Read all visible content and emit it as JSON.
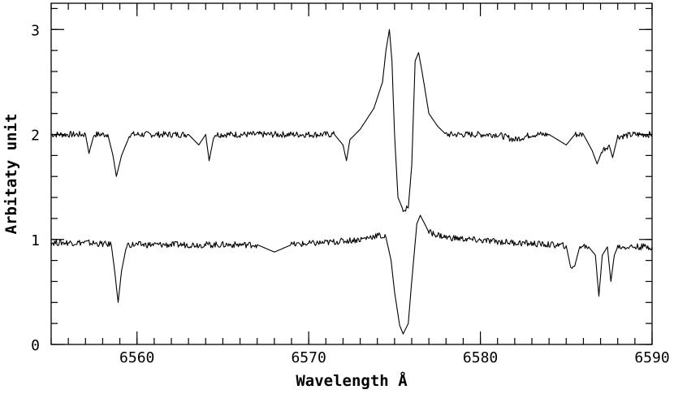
{
  "chart_data": {
    "type": "line",
    "title": "",
    "xlabel": "Wavelength Å",
    "ylabel": "Arbitaty unit",
    "xlim": [
      6555,
      6590
    ],
    "ylim": [
      0,
      3.25
    ],
    "x_ticks": [
      6560,
      6570,
      6580,
      6590
    ],
    "y_ticks": [
      0,
      1,
      2,
      3
    ],
    "x_minor_step": 1,
    "y_minor_step": 0.2,
    "grid": false,
    "legend": "none",
    "line_color": "#000000",
    "series": [
      {
        "x": [
          6555.0,
          6557.0,
          6557.2,
          6557.5,
          6558.3,
          6558.6,
          6558.8,
          6559.1,
          6559.6,
          6561.0,
          6562.0,
          6563.0,
          6563.6,
          6564.0,
          6564.2,
          6564.5,
          6566.0,
          6568.0,
          6570.0,
          6571.5,
          6572.0,
          6572.2,
          6572.4,
          6573.0,
          6573.8,
          6574.3,
          6574.5,
          6574.7,
          6574.85,
          6575.0,
          6575.2,
          6575.5,
          6575.8,
          6576.0,
          6576.2,
          6576.4,
          6576.6,
          6577.0,
          6577.5,
          6578.0,
          6579.0,
          6580.0,
          6581.0,
          6582.0,
          6583.0,
          6584.0,
          6585.0,
          6585.5,
          6586.0,
          6586.5,
          6586.8,
          6587.1,
          6587.5,
          6587.7,
          6588.0,
          6589.0,
          6590.0
        ],
        "y": [
          2.0,
          2.0,
          1.82,
          2.0,
          2.0,
          1.8,
          1.6,
          1.8,
          2.0,
          2.0,
          2.0,
          2.0,
          1.9,
          2.0,
          1.75,
          2.0,
          2.0,
          2.0,
          2.0,
          2.0,
          1.9,
          1.75,
          1.95,
          2.05,
          2.25,
          2.5,
          2.8,
          3.0,
          2.7,
          2.0,
          1.4,
          1.28,
          1.3,
          1.7,
          2.7,
          2.78,
          2.6,
          2.2,
          2.08,
          2.0,
          2.0,
          2.0,
          2.0,
          1.95,
          2.0,
          2.0,
          1.9,
          2.0,
          2.0,
          1.85,
          1.72,
          1.85,
          1.9,
          1.78,
          1.98,
          2.0,
          2.0
        ]
      },
      {
        "x": [
          6555.0,
          6557.0,
          6558.5,
          6558.7,
          6558.9,
          6559.1,
          6559.4,
          6561.0,
          6563.0,
          6565.0,
          6567.0,
          6568.0,
          6569.0,
          6571.0,
          6573.0,
          6574.0,
          6574.5,
          6574.8,
          6575.0,
          6575.3,
          6575.5,
          6575.8,
          6576.0,
          6576.3,
          6576.5,
          6577.0,
          6578.0,
          6580.0,
          6582.0,
          6584.0,
          6585.0,
          6585.3,
          6585.5,
          6585.8,
          6586.3,
          6586.7,
          6586.9,
          6587.1,
          6587.4,
          6587.6,
          6587.8,
          6588.0,
          6589.0,
          6590.0
        ],
        "y": [
          0.97,
          0.97,
          0.95,
          0.7,
          0.4,
          0.7,
          0.95,
          0.95,
          0.95,
          0.95,
          0.95,
          0.88,
          0.95,
          0.97,
          1.0,
          1.04,
          1.02,
          0.8,
          0.5,
          0.18,
          0.1,
          0.2,
          0.6,
          1.15,
          1.23,
          1.07,
          1.02,
          0.99,
          0.97,
          0.95,
          0.94,
          0.7,
          0.75,
          0.94,
          0.93,
          0.85,
          0.46,
          0.85,
          0.93,
          0.6,
          0.85,
          0.93,
          0.93,
          0.93
        ]
      }
    ]
  }
}
